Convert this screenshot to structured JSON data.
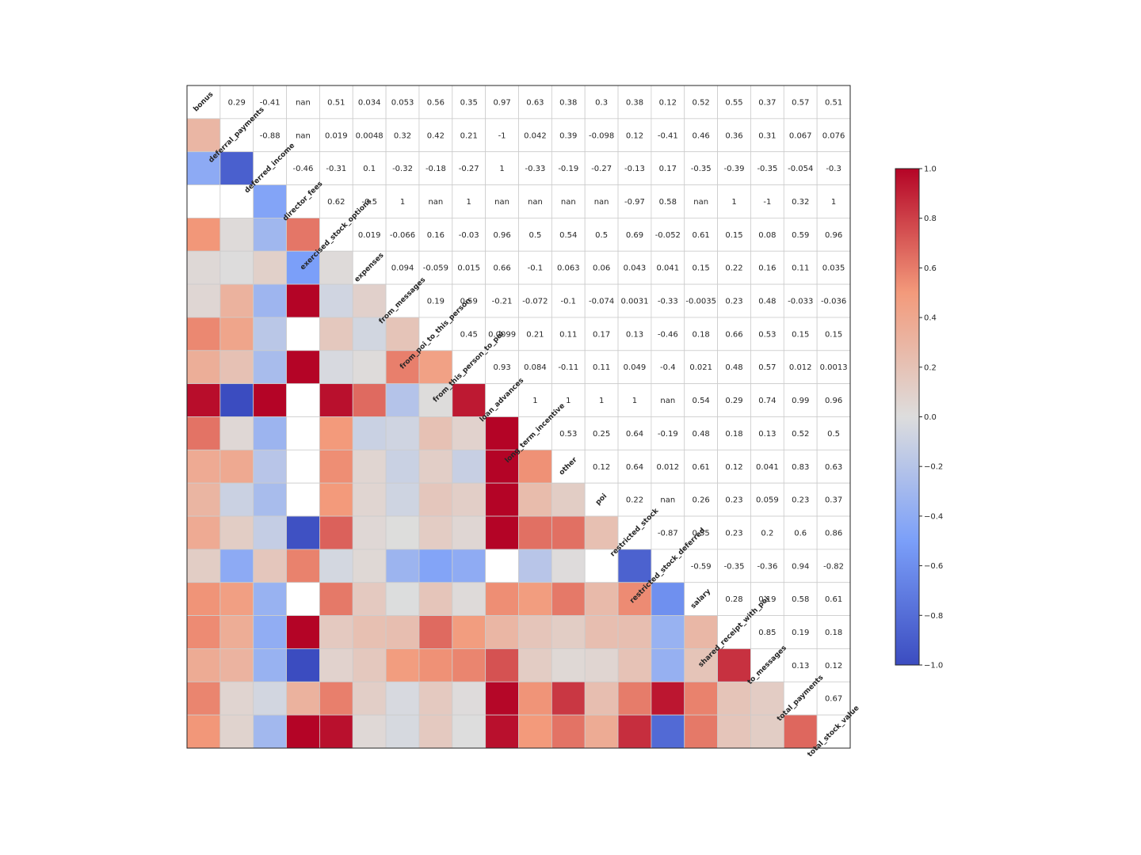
{
  "chart_data": {
    "type": "heatmap",
    "colormap": "coolwarm",
    "vmin": -1,
    "vmax": 1,
    "variables": [
      "bonus",
      "deferral_payments",
      "deferred_income",
      "director_fees",
      "exercised_stock_options",
      "expenses",
      "from_messages",
      "from_poi_to_this_person",
      "from_this_person_to_poi",
      "loan_advances",
      "long_term_incentive",
      "other",
      "poi",
      "restricted_stock",
      "restricted_stock_deferred",
      "salary",
      "shared_receipt_with_poi",
      "to_messages",
      "total_payments",
      "total_stock_value"
    ],
    "upper_labels": [
      [
        "",
        "0.29",
        "-0.41",
        "nan",
        "0.51",
        "0.034",
        "0.053",
        "0.56",
        "0.35",
        "0.97",
        "0.63",
        "0.38",
        "0.3",
        "0.38",
        "0.12",
        "0.52",
        "0.55",
        "0.37",
        "0.57",
        "0.51"
      ],
      [
        "",
        "",
        "-0.88",
        "nan",
        "0.019",
        "0.0048",
        "0.32",
        "0.42",
        "0.21",
        "-1",
        "0.042",
        "0.39",
        "-0.098",
        "0.12",
        "-0.41",
        "0.46",
        "0.36",
        "0.31",
        "0.067",
        "0.076"
      ],
      [
        "",
        "",
        "",
        "-0.46",
        "-0.31",
        "0.1",
        "-0.32",
        "-0.18",
        "-0.27",
        "1",
        "-0.33",
        "-0.19",
        "-0.27",
        "-0.13",
        "0.17",
        "-0.35",
        "-0.39",
        "-0.35",
        "-0.054",
        "-0.3"
      ],
      [
        "",
        "",
        "",
        "",
        "0.62",
        "-0.5",
        "1",
        "nan",
        "1",
        "nan",
        "nan",
        "nan",
        "nan",
        "-0.97",
        "0.58",
        "nan",
        "1",
        "-1",
        "0.32",
        "1"
      ],
      [
        "",
        "",
        "",
        "",
        "",
        "0.019",
        "-0.066",
        "0.16",
        "-0.03",
        "0.96",
        "0.5",
        "0.54",
        "0.5",
        "0.69",
        "-0.052",
        "0.61",
        "0.15",
        "0.08",
        "0.59",
        "0.96"
      ],
      [
        "",
        "",
        "",
        "",
        "",
        "",
        "0.094",
        "-0.059",
        "0.015",
        "0.66",
        "-0.1",
        "0.063",
        "0.06",
        "0.043",
        "0.041",
        "0.15",
        "0.22",
        "0.16",
        "0.11",
        "0.035"
      ],
      [
        "",
        "",
        "",
        "",
        "",
        "",
        "",
        "0.19",
        "0.59",
        "-0.21",
        "-0.072",
        "-0.1",
        "-0.074",
        "0.0031",
        "-0.33",
        "-0.0035",
        "0.23",
        "0.48",
        "-0.033",
        "-0.036"
      ],
      [
        "",
        "",
        "",
        "",
        "",
        "",
        "",
        "",
        "0.45",
        "0.0099",
        "0.21",
        "0.11",
        "0.17",
        "0.13",
        "-0.46",
        "0.18",
        "0.66",
        "0.53",
        "0.15",
        "0.15"
      ],
      [
        "",
        "",
        "",
        "",
        "",
        "",
        "",
        "",
        "",
        "0.93",
        "0.084",
        "-0.11",
        "0.11",
        "0.049",
        "-0.4",
        "0.021",
        "0.48",
        "0.57",
        "0.012",
        "0.0013"
      ],
      [
        "",
        "",
        "",
        "",
        "",
        "",
        "",
        "",
        "",
        "",
        "1",
        "1",
        "1",
        "1",
        "nan",
        "0.54",
        "0.29",
        "0.74",
        "0.99",
        "0.96"
      ],
      [
        "",
        "",
        "",
        "",
        "",
        "",
        "",
        "",
        "",
        "",
        "",
        "0.53",
        "0.25",
        "0.64",
        "-0.19",
        "0.48",
        "0.18",
        "0.13",
        "0.52",
        "0.5"
      ],
      [
        "",
        "",
        "",
        "",
        "",
        "",
        "",
        "",
        "",
        "",
        "",
        "",
        "0.12",
        "0.64",
        "0.012",
        "0.61",
        "0.12",
        "0.041",
        "0.83",
        "0.63"
      ],
      [
        "",
        "",
        "",
        "",
        "",
        "",
        "",
        "",
        "",
        "",
        "",
        "",
        "",
        "0.22",
        "nan",
        "0.26",
        "0.23",
        "0.059",
        "0.23",
        "0.37"
      ],
      [
        "",
        "",
        "",
        "",
        "",
        "",
        "",
        "",
        "",
        "",
        "",
        "",
        "",
        "",
        "-0.87",
        "0.55",
        "0.23",
        "0.2",
        "0.6",
        "0.86"
      ],
      [
        "",
        "",
        "",
        "",
        "",
        "",
        "",
        "",
        "",
        "",
        "",
        "",
        "",
        "",
        "",
        "-0.59",
        "-0.35",
        "-0.36",
        "0.94",
        "-0.82"
      ],
      [
        "",
        "",
        "",
        "",
        "",
        "",
        "",
        "",
        "",
        "",
        "",
        "",
        "",
        "",
        "",
        "",
        "0.28",
        "0.19",
        "0.58",
        "0.61"
      ],
      [
        "",
        "",
        "",
        "",
        "",
        "",
        "",
        "",
        "",
        "",
        "",
        "",
        "",
        "",
        "",
        "",
        "",
        "0.85",
        "0.19",
        "0.18"
      ],
      [
        "",
        "",
        "",
        "",
        "",
        "",
        "",
        "",
        "",
        "",
        "",
        "",
        "",
        "",
        "",
        "",
        "",
        "",
        "0.13",
        "0.12"
      ],
      [
        "",
        "",
        "",
        "",
        "",
        "",
        "",
        "",
        "",
        "",
        "",
        "",
        "",
        "",
        "",
        "",
        "",
        "",
        "",
        "0.67"
      ],
      [
        "",
        "",
        "",
        "",
        "",
        "",
        "",
        "",
        "",
        "",
        "",
        "",
        "",
        "",
        "",
        "",
        "",
        "",
        "",
        ""
      ]
    ],
    "colorbar_ticks": [
      "1.0",
      "0.8",
      "0.6",
      "0.4",
      "0.2",
      "0.0",
      "−0.2",
      "−0.4",
      "−0.6",
      "−0.8",
      "−1.0"
    ]
  }
}
